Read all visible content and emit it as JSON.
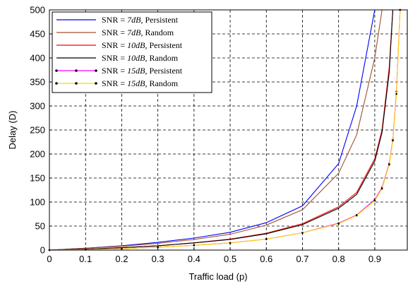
{
  "chart_data": {
    "type": "line",
    "xlabel": "Traffic load (p)",
    "ylabel": "Delay (D)",
    "xlim": [
      0,
      0.99
    ],
    "ylim": [
      0,
      500
    ],
    "xticks": [
      "0",
      "0.1",
      "0.2",
      "0.3",
      "0.4",
      "0.5",
      "0.6",
      "0.7",
      "0.8",
      "0.9"
    ],
    "yticks": [
      "0",
      "50",
      "100",
      "150",
      "200",
      "250",
      "300",
      "350",
      "400",
      "450",
      "500"
    ],
    "grid": true,
    "legend_position": "top-left",
    "x": [
      0,
      0.1,
      0.2,
      0.3,
      0.4,
      0.5,
      0.6,
      0.7,
      0.8,
      0.85,
      0.9,
      0.92,
      0.94,
      0.95,
      0.96,
      0.97
    ],
    "series": [
      {
        "name": "SNR = 7dB, Persistent",
        "legend": {
          "pre": "SNR = ",
          "snr": "7dB",
          "post": ", Persistent"
        },
        "color": "#0000ff",
        "marker": false,
        "values": [
          0,
          4,
          9,
          16,
          25,
          37,
          57,
          92,
          180,
          300,
          500,
          null,
          null,
          null,
          null,
          null
        ]
      },
      {
        "name": "SNR = 7dB, Random",
        "legend": {
          "pre": "SNR = ",
          "snr": "7dB",
          "post": ", Random"
        },
        "color": "#a0522d",
        "marker": false,
        "values": [
          0,
          4,
          8,
          14,
          22,
          33,
          52,
          84,
          160,
          240,
          400,
          500,
          null,
          null,
          null,
          null
        ]
      },
      {
        "name": "SNR = 10dB, Persistent",
        "legend": {
          "pre": "SNR = ",
          "snr": "10dB",
          "post": ", Persistent"
        },
        "color": "#ff0000",
        "marker": false,
        "values": [
          0,
          2,
          5,
          9,
          15,
          23,
          35,
          55,
          90,
          120,
          190,
          250,
          380,
          500,
          null,
          null
        ]
      },
      {
        "name": "SNR = 10dB, Random",
        "legend": {
          "pre": "SNR = ",
          "snr": "10dB",
          "post": ", Random"
        },
        "color": "#000000",
        "marker": false,
        "values": [
          0,
          2,
          5,
          9,
          15,
          22,
          34,
          53,
          87,
          116,
          185,
          245,
          370,
          500,
          null,
          null
        ]
      },
      {
        "name": "SNR = 15dB, Persistent",
        "legend": {
          "pre": "SNR = ",
          "snr": "15dB",
          "post": ", Persistent"
        },
        "color": "#ff00ff",
        "marker": true,
        "values": [
          0,
          1,
          3,
          6,
          10,
          15,
          23,
          36,
          56,
          73,
          105,
          130,
          180,
          230,
          330,
          500
        ]
      },
      {
        "name": "SNR = 15dB, Random",
        "legend": {
          "pre": "SNR = ",
          "snr": "15dB",
          "post": ", Random"
        },
        "color": "#ffd700",
        "marker": true,
        "values": [
          0,
          1,
          3,
          6,
          10,
          15,
          23,
          36,
          55,
          72,
          103,
          128,
          178,
          228,
          325,
          500
        ]
      }
    ]
  }
}
